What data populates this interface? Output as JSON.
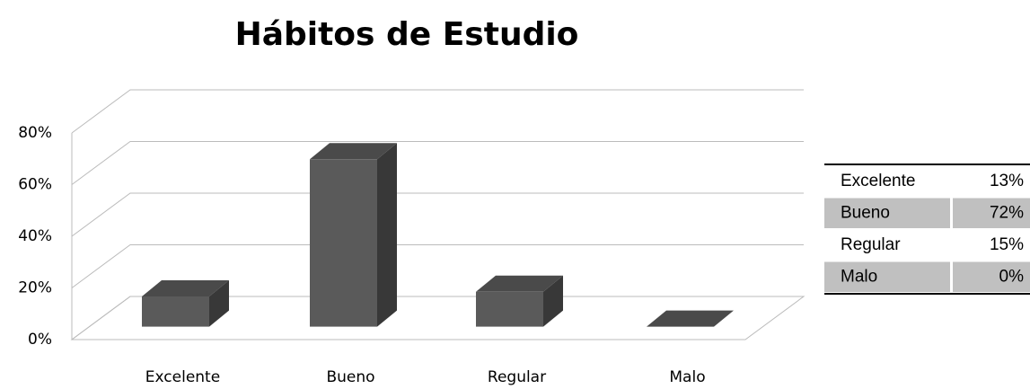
{
  "chart_data": {
    "type": "bar3d",
    "title": "Hábitos de Estudio",
    "categories": [
      "Excelente",
      "Bueno",
      "Regular",
      "Malo"
    ],
    "values": [
      13,
      72,
      15,
      0
    ],
    "value_labels": [
      "13%",
      "72%",
      "15%",
      "0%"
    ],
    "color": "#5a5a5a",
    "ylim": [
      0,
      80
    ],
    "yticks": [
      {
        "value": 0,
        "label": "0%"
      },
      {
        "value": 20,
        "label": "20%"
      },
      {
        "value": 40,
        "label": "40%"
      },
      {
        "value": 60,
        "label": "60%"
      },
      {
        "value": 80,
        "label": "80%"
      }
    ],
    "grid": true
  }
}
